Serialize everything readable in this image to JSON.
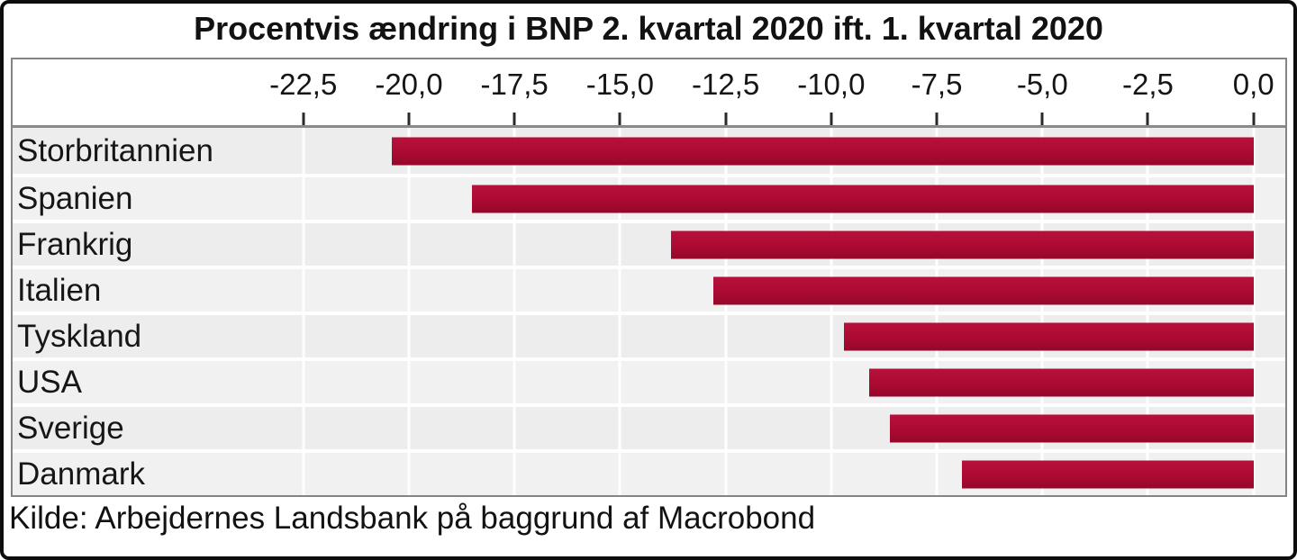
{
  "title": "Procentvis ændring i BNP 2. kvartal 2020 ift. 1. kvartal 2020",
  "source": "Kilde: Arbejdernes Landsbank på baggrund af Macrobond",
  "colors": {
    "bar": "#AC0A32",
    "bar_dark_edge": "#94082A",
    "plot_background": "#EDEDED",
    "gridline": "#FFFFFF",
    "box_border": "#848484",
    "frame": "#0D0D0D",
    "text": "#121212"
  },
  "chart_data": {
    "type": "bar",
    "orientation": "horizontal",
    "title": "Procentvis ændring i BNP 2. kvartal 2020 ift. 1. kvartal 2020",
    "categories": [
      "Storbritannien",
      "Spanien",
      "Frankrig",
      "Italien",
      "Tyskland",
      "USA",
      "Sverige",
      "Danmark"
    ],
    "values": [
      -20.4,
      -18.5,
      -13.8,
      -12.8,
      -9.7,
      -9.1,
      -8.6,
      -6.9
    ],
    "unit": "percent",
    "xlabel": "",
    "ylabel": "",
    "xlim": [
      -29.4,
      0.75
    ],
    "x_ticks": [
      -22.5,
      -20.0,
      -17.5,
      -15.0,
      -12.5,
      -10.0,
      -7.5,
      -5.0,
      -2.5,
      0.0
    ],
    "x_tick_labels": [
      "-22,5",
      "-20,0",
      "-17,5",
      "-15,0",
      "-12,5",
      "-10,0",
      "-7,5",
      "-5,0",
      "-2,5",
      "0,0"
    ],
    "grid": true,
    "legend": false,
    "source_caption": "Kilde: Arbejdernes Landsbank på baggrund af Macrobond"
  }
}
